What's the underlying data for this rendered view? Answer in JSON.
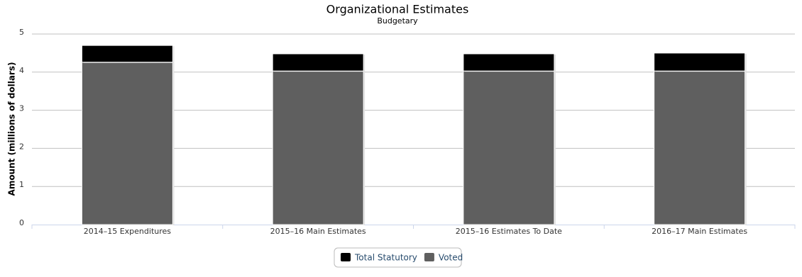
{
  "chart_data": {
    "type": "stacked_bar",
    "title": "Organizational Estimates",
    "subtitle": "Budgetary",
    "y_label": "Amount (millions of dollars)",
    "categories": [
      "2014–15 Expenditures",
      "2015–16 Main Estimates",
      "2015–16 Estimates To Date",
      "2016–17 Main Estimates"
    ],
    "series": [
      {
        "name": "Total Statutory",
        "color": "#000000",
        "values": [
          0.44,
          0.45,
          0.45,
          0.47
        ]
      },
      {
        "name": "Voted",
        "color": "#5f5f5f",
        "values": [
          4.26,
          4.03,
          4.03,
          4.03
        ]
      }
    ],
    "ylim": [
      0,
      5
    ],
    "yticks": [
      0,
      1,
      2,
      3,
      4,
      5
    ],
    "grid": true,
    "legend": "bottom"
  }
}
